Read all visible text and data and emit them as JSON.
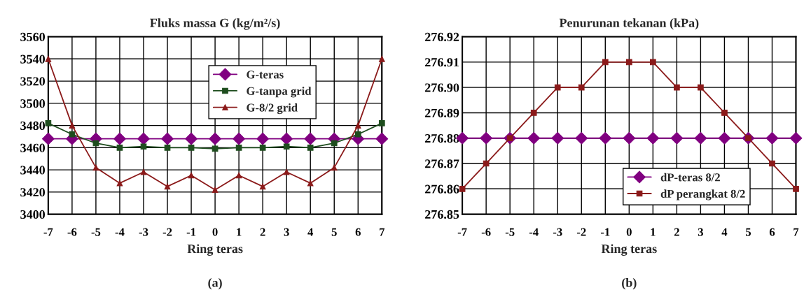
{
  "chart_data": [
    {
      "type": "line",
      "title": "Fluks massa G (kg/m²/s)",
      "xlabel": "Ring teras",
      "annotations": [
        "(a)"
      ],
      "x": [
        -7,
        -6,
        -5,
        -4,
        -3,
        -2,
        -1,
        0,
        1,
        2,
        3,
        4,
        5,
        6,
        7
      ],
      "series": [
        {
          "name": "G-teras",
          "color": "#800080",
          "marker": "diamond",
          "values": [
            3468,
            3468,
            3468,
            3468,
            3468,
            3468,
            3468,
            3468,
            3468,
            3468,
            3468,
            3468,
            3468,
            3468,
            3468
          ]
        },
        {
          "name": "G-tanpa grid",
          "color": "#1e4d1e",
          "marker": "square",
          "values": [
            3482,
            3472,
            3464,
            3460,
            3461,
            3460,
            3460,
            3459,
            3460,
            3460,
            3461,
            3460,
            3464,
            3472,
            3482
          ]
        },
        {
          "name": "G-8/2 grid",
          "color": "#8b1a1a",
          "marker": "triangle",
          "values": [
            3540,
            3480,
            3442,
            3428,
            3438,
            3425,
            3435,
            3422,
            3435,
            3425,
            3438,
            3428,
            3442,
            3480,
            3540
          ]
        }
      ],
      "xlim": [
        -7,
        7
      ],
      "xticks": [
        -7,
        -6,
        -5,
        -4,
        -3,
        -2,
        -1,
        0,
        1,
        2,
        3,
        4,
        5,
        6,
        7
      ],
      "ylim": [
        3400,
        3560
      ],
      "yticks": [
        3400,
        3420,
        3440,
        3460,
        3480,
        3500,
        3520,
        3540,
        3560
      ],
      "grid": true,
      "legend": "top right"
    },
    {
      "type": "line",
      "title": "Penurunan tekanan (kPa)",
      "xlabel": "Ring teras",
      "annotations": [
        "(b)"
      ],
      "x": [
        -7,
        -6,
        -5,
        -4,
        -3,
        -2,
        -1,
        0,
        1,
        2,
        3,
        4,
        5,
        6,
        7
      ],
      "series": [
        {
          "name": "dP-teras 8/2",
          "color": "#800080",
          "marker": "diamond",
          "values": [
            276.88,
            276.88,
            276.88,
            276.88,
            276.88,
            276.88,
            276.88,
            276.88,
            276.88,
            276.88,
            276.88,
            276.88,
            276.88,
            276.88,
            276.88
          ]
        },
        {
          "name": "dP perangkat 8/2",
          "color": "#8b1a1a",
          "marker": "square",
          "values": [
            276.86,
            276.87,
            276.88,
            276.89,
            276.9,
            276.9,
            276.91,
            276.91,
            276.91,
            276.9,
            276.9,
            276.89,
            276.88,
            276.87,
            276.86
          ]
        }
      ],
      "xlim": [
        -7,
        7
      ],
      "xticks": [
        -7,
        -6,
        -5,
        -4,
        -3,
        -2,
        -1,
        0,
        1,
        2,
        3,
        4,
        5,
        6,
        7
      ],
      "ylim": [
        276.85,
        276.92
      ],
      "yticks": [
        {
          "value": 276.85,
          "label": "276.85"
        },
        {
          "value": 276.86,
          "label": "276.86"
        },
        {
          "value": 276.87,
          "label": "276.87"
        },
        {
          "value": 276.88,
          "label": "276.88"
        },
        {
          "value": 276.89,
          "label": "276.89"
        },
        {
          "value": 276.9,
          "label": "276.90"
        },
        {
          "value": 276.91,
          "label": "276.91"
        },
        {
          "value": 276.92,
          "label": "276.92"
        }
      ],
      "grid": true,
      "legend": "bottom right"
    }
  ]
}
